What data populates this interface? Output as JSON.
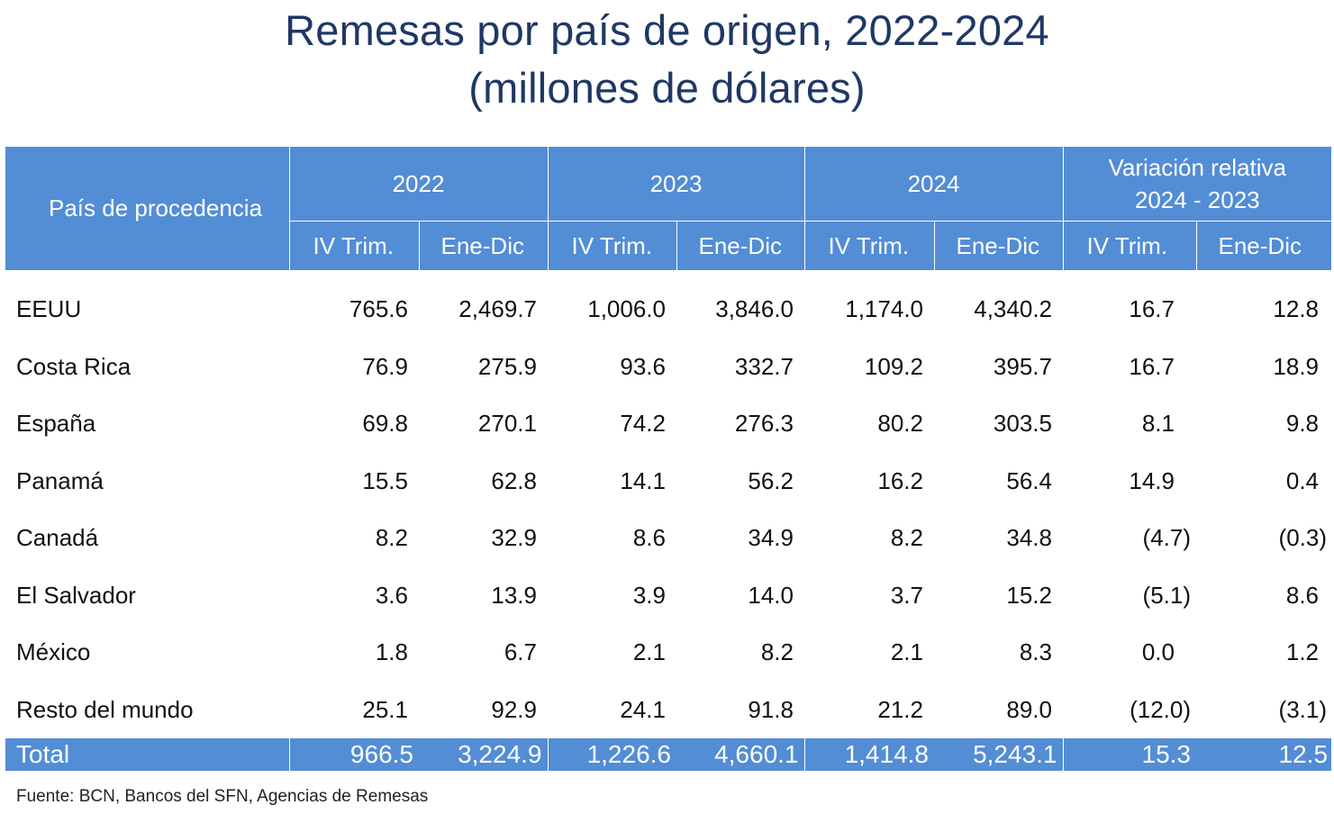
{
  "title": {
    "line1": "Remesas por país de origen, 2022-2024",
    "line2": "(millones de dólares)"
  },
  "table": {
    "header": {
      "country": "País de procedencia",
      "year_2022": "2022",
      "year_2023": "2023",
      "year_2024": "2024",
      "variation_line1": "Variación relativa",
      "variation_line2": "2024 - 2023",
      "sub_iv": "IV Trim.",
      "sub_ed": "Ene-Dic"
    },
    "rows": [
      {
        "country": "EEUU",
        "v": [
          "765.6",
          "2,469.7",
          "1,006.0",
          "3,846.0",
          "1,174.0",
          "4,340.2",
          "16.7",
          "12.8"
        ]
      },
      {
        "country": "Costa Rica",
        "v": [
          "76.9",
          "275.9",
          "93.6",
          "332.7",
          "109.2",
          "395.7",
          "16.7",
          "18.9"
        ]
      },
      {
        "country": "España",
        "v": [
          "69.8",
          "270.1",
          "74.2",
          "276.3",
          "80.2",
          "303.5",
          "8.1",
          "9.8"
        ]
      },
      {
        "country": "Panamá",
        "v": [
          "15.5",
          "62.8",
          "14.1",
          "56.2",
          "16.2",
          "56.4",
          "14.9",
          "0.4"
        ]
      },
      {
        "country": "Canadá",
        "v": [
          "8.2",
          "32.9",
          "8.6",
          "34.9",
          "8.2",
          "34.8",
          "(4.7)",
          "(0.3)"
        ]
      },
      {
        "country": "El Salvador",
        "v": [
          "3.6",
          "13.9",
          "3.9",
          "14.0",
          "3.7",
          "15.2",
          "(5.1)",
          "8.6"
        ]
      },
      {
        "country": "México",
        "v": [
          "1.8",
          "6.7",
          "2.1",
          "8.2",
          "2.1",
          "8.3",
          "0.0",
          "1.2"
        ]
      },
      {
        "country": "Resto del mundo",
        "v": [
          "25.1",
          "92.9",
          "24.1",
          "91.8",
          "21.2",
          "89.0",
          "(12.0)",
          "(3.1)"
        ]
      }
    ],
    "total": {
      "label": "Total",
      "v": [
        "966.5",
        "3,224.9",
        "1,226.6",
        "4,660.1",
        "1,414.8",
        "5,243.1",
        "15.3",
        "12.5"
      ]
    }
  },
  "source": "Fuente: BCN, Bancos del SFN, Agencias de Remesas"
}
